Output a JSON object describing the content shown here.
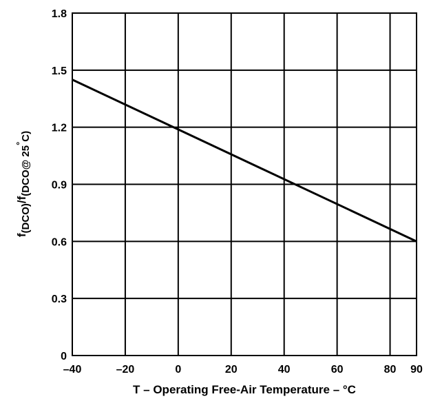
{
  "chart_data": {
    "type": "line",
    "xlabel": "T – Operating Free-Air Temperature – °C",
    "ylabel": {
      "f1": "f",
      "sub1": "(DCO)",
      "slash": "/f",
      "sub2": "(DCO@ 25",
      "deg": "°",
      "sub2end": "C)"
    },
    "xlim": [
      -40,
      90
    ],
    "ylim": [
      0,
      1.8
    ],
    "x_ticks": [
      -40,
      -20,
      0,
      20,
      40,
      60,
      80,
      90
    ],
    "x_tick_labels": [
      "–40",
      "–20",
      "0",
      "20",
      "40",
      "60",
      "80",
      "90"
    ],
    "y_ticks": [
      0,
      0.3,
      0.6,
      0.9,
      1.2,
      1.5,
      1.8
    ],
    "y_tick_labels": [
      "0",
      "0.3",
      "0.6",
      "0.9",
      "1.2",
      "1.5",
      "1.8"
    ],
    "grid": true,
    "series": [
      {
        "x": [
          -40,
          90
        ],
        "y": [
          1.45,
          0.6
        ]
      }
    ]
  }
}
